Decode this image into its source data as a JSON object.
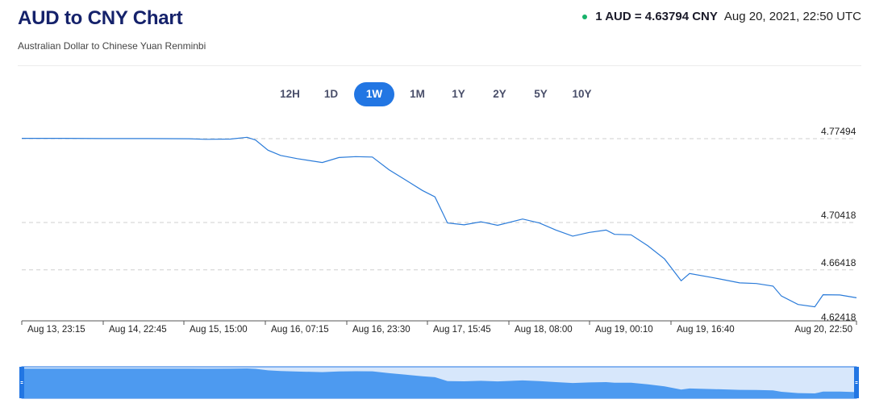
{
  "header": {
    "title": "AUD to CNY Chart",
    "subtitle": "Australian Dollar to Chinese Yuan Renminbi",
    "rate_text": "1 AUD = 4.63794 CNY",
    "timestamp": "Aug 20, 2021, 22:50 UTC",
    "live_color": "#17b26a"
  },
  "range_tabs": {
    "items": [
      "12H",
      "1D",
      "1W",
      "1M",
      "1Y",
      "2Y",
      "5Y",
      "10Y"
    ],
    "selected": "1W",
    "accent_color": "#2276e3"
  },
  "chart_data": {
    "type": "line",
    "title": "",
    "xlabel": "",
    "ylabel": "",
    "y_ticks": [
      "4.77494",
      "4.70418",
      "4.66418",
      "4.62418"
    ],
    "y_tick_values": [
      4.77494,
      4.70418,
      4.66418,
      4.62418
    ],
    "x_ticks": [
      "Aug 13, 23:15",
      "Aug 14, 22:45",
      "Aug 15, 15:00",
      "Aug 16, 07:15",
      "Aug 16, 23:30",
      "Aug 17, 15:45",
      "Aug 18, 08:00",
      "Aug 19, 00:10",
      "Aug 19, 16:40",
      "Aug 20, 22:50"
    ],
    "line_color": "#2a7bd9",
    "navigator_fill": "#4d9af0",
    "grid": "horizontal dashed",
    "series": [
      {
        "x_position_index": [
          0,
          0.5,
          1,
          1.5,
          2,
          2.2,
          2.5,
          2.7,
          2.8,
          2.95,
          3.1,
          3.3,
          3.6,
          3.8,
          4.0,
          4.2,
          4.4,
          4.6,
          4.8,
          4.95,
          5.1,
          5.3,
          5.5,
          5.7,
          6.0,
          6.2,
          6.4,
          6.6,
          6.8,
          7.0,
          7.1,
          7.3,
          7.5,
          7.7,
          7.9,
          8.0,
          8.3,
          8.6,
          8.8,
          9.0,
          9.1,
          9.3,
          9.5,
          9.6,
          9.8,
          10.0
        ],
        "values": [
          4.7752,
          4.7752,
          4.775,
          4.775,
          4.7749,
          4.7744,
          4.7746,
          4.7761,
          4.7738,
          4.7652,
          4.7608,
          4.7581,
          4.7548,
          4.759,
          4.7598,
          4.7594,
          4.7487,
          4.74,
          4.7312,
          4.7258,
          4.7038,
          4.7022,
          4.7048,
          4.7018,
          4.7071,
          4.7038,
          4.6978,
          4.6927,
          4.6958,
          4.6978,
          4.6942,
          4.6938,
          4.6845,
          4.6734,
          4.655,
          4.6611,
          4.6574,
          4.6532,
          4.6527,
          4.6505,
          4.6421,
          4.635,
          4.633,
          4.6432,
          4.643,
          4.6406
        ]
      }
    ]
  }
}
